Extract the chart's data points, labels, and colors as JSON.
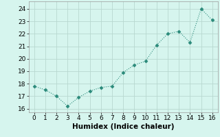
{
  "x": [
    0,
    1,
    2,
    3,
    4,
    5,
    6,
    7,
    8,
    9,
    10,
    11,
    12,
    13,
    14,
    15,
    16
  ],
  "y": [
    17.8,
    17.5,
    17.0,
    16.2,
    16.9,
    17.4,
    17.7,
    17.8,
    18.9,
    19.5,
    19.8,
    21.1,
    22.0,
    22.2,
    21.3,
    24.0,
    23.1
  ],
  "xlabel": "Humidex (Indice chaleur)",
  "ylim": [
    15.7,
    24.6
  ],
  "xlim": [
    -0.5,
    16.5
  ],
  "yticks": [
    16,
    17,
    18,
    19,
    20,
    21,
    22,
    23,
    24
  ],
  "xticks": [
    0,
    1,
    2,
    3,
    4,
    5,
    6,
    7,
    8,
    9,
    10,
    11,
    12,
    13,
    14,
    15,
    16
  ],
  "line_color": "#2a8a7a",
  "marker_color": "#2a8a7a",
  "bg_color": "#d6f5ee",
  "grid_color": "#b8d8d0",
  "axis_label_fontsize": 7.5,
  "tick_fontsize": 6.5
}
